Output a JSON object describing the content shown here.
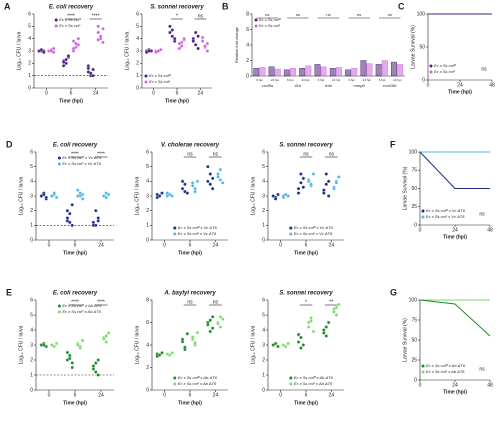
{
  "chart_data": [
    {
      "type": "dot",
      "panel": "A",
      "title": "E. coli recovery",
      "xlabel": "Time (hpi)",
      "ylabel": "Log₁₀ CFU / larva",
      "categories": [
        "0",
        "6",
        "24"
      ],
      "ylim": [
        0,
        6
      ],
      "yticks": [
        0,
        1,
        2,
        3,
        4,
        5,
        6
      ],
      "detection_limit": 1,
      "legend": "upper right",
      "significance": [
        null,
        "****",
        "****"
      ],
      "series": [
        {
          "name": "Ec x Ss colᴿ",
          "color": "#4b1f7a",
          "values": [
            [
              3,
              3,
              3,
              3,
              3.1,
              2.9
            ],
            [
              2.2,
              2,
              2.5,
              1.8,
              2.3,
              2.6,
              2.1
            ],
            [
              1.3,
              1,
              1.5,
              1.8,
              1.2,
              1,
              1.6
            ]
          ]
        },
        {
          "name": "Ec x Ss colˢ",
          "color": "#cc66dd",
          "values": [
            [
              3,
              3.1,
              2.9,
              3,
              3,
              3.2
            ],
            [
              3.8,
              3.3,
              3.5,
              3,
              3.6,
              4,
              3.2
            ],
            [
              4.5,
              4,
              3.7,
              5,
              4.2,
              4.8,
              3.9
            ]
          ]
        }
      ]
    },
    {
      "type": "dot",
      "title": "S. sonnei recovery",
      "xlabel": "Time (hpi)",
      "ylabel": "Log₁₀ CFU / larva",
      "categories": [
        "0",
        "6",
        "24"
      ],
      "ylim": [
        0,
        6
      ],
      "yticks": [
        0,
        1,
        2,
        3,
        4,
        5,
        6
      ],
      "legend": "lower left",
      "significance": [
        null,
        "*",
        "ns"
      ],
      "series": [
        {
          "name": "Ec x Ss colᴿ",
          "color": "#4b1f7a",
          "values": [
            [
              3,
              3.1,
              3,
              2.9,
              3
            ],
            [
              4.5,
              4.2,
              3.8,
              5,
              4.7,
              4
            ],
            [
              4,
              3.5,
              4.2,
              3.8,
              4.5,
              3.2
            ]
          ]
        },
        {
          "name": "Ec x Ss colˢ",
          "color": "#cc66dd",
          "values": [
            [
              3,
              3,
              3.1,
              2.9,
              3
            ],
            [
              3.6,
              3.4,
              3.9,
              3.2,
              3.7,
              4
            ],
            [
              3.8,
              3.3,
              3.6,
              4.1,
              3.4,
              3
            ]
          ]
        }
      ]
    },
    {
      "type": "bar",
      "panel": "B",
      "ylabel": "Relative fold change",
      "categories": [
        "6 hpi",
        "24 hpi",
        "6 hpi",
        "24 hpi",
        "6 hpi",
        "24 hpi",
        "6 hpi",
        "24 hpi",
        "6 hpi",
        "24 hpi"
      ],
      "groups": [
        "cxcl8a",
        "il1b",
        "tnfa",
        "mmp9",
        "cxcl18b"
      ],
      "ylim": [
        0,
        8
      ],
      "yticks": [
        0,
        2,
        4,
        6,
        8
      ],
      "legend": "upper left",
      "significance": [
        "ns",
        "ns",
        "ns",
        "ns",
        "ns"
      ],
      "series": [
        {
          "name": "Ec x Ss colᴿ",
          "color": "#4b1f7a",
          "values": [
            1,
            1.2,
            0.8,
            1,
            1.5,
            1,
            0.8,
            2,
            1.5,
            1.8
          ]
        },
        {
          "name": "Ec x Ss colˢ",
          "color": "#cc66dd",
          "values": [
            1.1,
            0.9,
            1,
            1.3,
            1.2,
            1.1,
            1,
            1.6,
            2,
            1.5
          ]
        }
      ]
    },
    {
      "type": "survival",
      "panel": "C",
      "xlabel": "Time (hpi)",
      "ylabel": "Larvae Survival (%)",
      "x": [
        0,
        48
      ],
      "xlim": [
        0,
        48
      ],
      "xticks": [
        0,
        24,
        48
      ],
      "ylim": [
        0,
        100
      ],
      "yticks": [
        0,
        50,
        100
      ],
      "note": "ns",
      "series": [
        {
          "name": "Ec x Ss colᴿ",
          "color": "#4b1f7a",
          "values": [
            100,
            100
          ]
        },
        {
          "name": "Ec x Ss colˢ",
          "color": "#cc66dd",
          "values": [
            100,
            100
          ]
        }
      ]
    },
    {
      "type": "dot",
      "panel": "D",
      "title": "E. coli recovery",
      "xlabel": "Time (hpi)",
      "ylabel": "Log₁₀ CFU / larva",
      "categories": [
        "0",
        "6",
        "24"
      ],
      "ylim": [
        0,
        6
      ],
      "yticks": [
        0,
        1,
        2,
        3,
        4,
        5,
        6
      ],
      "detection_limit": 1,
      "legend": "upper right",
      "significance": [
        null,
        "****",
        "****"
      ],
      "series": [
        {
          "name": "Ec x Ss colᴿ x Vc ΔT6",
          "color": "#1a2f8a",
          "values": [
            [
              3,
              3.2,
              2.8,
              3,
              3.1,
              2.9
            ],
            [
              1.5,
              1.2,
              1,
              2,
              1.8,
              2.4,
              1.3
            ],
            [
              1.2,
              1,
              1.5,
              1,
              2,
              1.3
            ]
          ]
        },
        {
          "name": "Ec x Ss colˢ x Vc ΔT6",
          "color": "#4fb8e8",
          "values": [
            [
              3,
              3.1,
              2.9,
              3,
              3.2
            ],
            [
              3,
              3.2,
              2.8,
              3.4,
              3,
              3.1
            ],
            [
              3,
              2.9,
              3.1,
              3,
              3.2
            ]
          ]
        }
      ]
    },
    {
      "type": "dot",
      "title": "V. cholerae recovery",
      "xlabel": "Time (hpi)",
      "ylabel": "Log₁₀ CFU / larva",
      "categories": [
        "0",
        "6",
        "24"
      ],
      "ylim": [
        0,
        6
      ],
      "yticks": [
        0,
        1,
        2,
        3,
        4,
        5,
        6
      ],
      "legend": "lower right",
      "significance": [
        null,
        "ns",
        "ns"
      ],
      "series": [
        {
          "name": "Ec x Ss colᴿ x Vc ΔT6",
          "color": "#1a2f8a",
          "values": [
            [
              3.1,
              3,
              3.2,
              2.9,
              3
            ],
            [
              3.5,
              3.8,
              3.2,
              4,
              3.3
            ],
            [
              4,
              4.5,
              3.5,
              5,
              3.8,
              4.2
            ]
          ]
        },
        {
          "name": "Ec x Ss colˢ x Vc ΔT6",
          "color": "#4fb8e8",
          "values": [
            [
              3,
              3.1,
              3,
              3.2
            ],
            [
              3.7,
              3.5,
              4,
              3.9,
              3.3
            ],
            [
              4.3,
              4.8,
              3.9,
              4.5,
              4.1
            ]
          ]
        }
      ]
    },
    {
      "type": "dot",
      "title": "S. sonnei recovery",
      "xlabel": "Time (hpi)",
      "ylabel": "Log₁₀ CFU / larva",
      "categories": [
        "0",
        "6",
        "24"
      ],
      "ylim": [
        0,
        6
      ],
      "yticks": [
        0,
        1,
        2,
        3,
        4,
        5,
        6
      ],
      "legend": "lower right",
      "significance": [
        null,
        "ns",
        "ns"
      ],
      "series": [
        {
          "name": "Ec x Ss colᴿ x Vc ΔT6",
          "color": "#1a2f8a",
          "values": [
            [
              3,
              2.9,
              3.1,
              3,
              2.8
            ],
            [
              3.5,
              3.9,
              4.2,
              3.2,
              4.5,
              3.6
            ],
            [
              3.4,
              3.8,
              4,
              3.2,
              4.5,
              3
            ]
          ]
        },
        {
          "name": "Ec x Ss colˢ x Vc ΔT6",
          "color": "#4fb8e8",
          "values": [
            [
              3,
              3.1,
              3,
              2.9
            ],
            [
              4.1,
              3.7,
              4.5,
              4,
              3.8
            ],
            [
              3.6,
              4,
              4.3,
              3.5,
              3.9
            ]
          ]
        }
      ]
    },
    {
      "type": "survival",
      "panel": "F",
      "xlabel": "Time (hpi)",
      "ylabel": "Larvae Survival (%)",
      "x": [
        0,
        24,
        48
      ],
      "xlim": [
        0,
        48
      ],
      "xticks": [
        0,
        24,
        48
      ],
      "ylim": [
        0,
        100
      ],
      "yticks": [
        0,
        25,
        50,
        75,
        100
      ],
      "note": "ns",
      "series": [
        {
          "name": "Ec x Ss colᴿ x Vc ΔT6",
          "color": "#1a2f8a",
          "values": [
            100,
            50,
            50
          ]
        },
        {
          "name": "Ec x Ss colˢ x Vc ΔT6",
          "color": "#4fb8e8",
          "values": [
            100,
            100,
            100
          ]
        }
      ]
    },
    {
      "type": "dot",
      "panel": "E",
      "title": "E. coli recovery",
      "xlabel": "Time (hpi)",
      "ylabel": "Log₁₀ CFU / larva",
      "categories": [
        "0",
        "6",
        "24"
      ],
      "ylim": [
        0,
        6
      ],
      "yticks": [
        0,
        1,
        2,
        3,
        4,
        5,
        6
      ],
      "detection_limit": 1,
      "legend": "upper right",
      "significance": [
        null,
        "****",
        "****"
      ],
      "series": [
        {
          "name": "Ec x Ss colᴿ x Ab ΔT6",
          "color": "#1f8a2a",
          "values": [
            [
              3,
              3.1,
              2.9,
              3,
              3
            ],
            [
              2,
              2.3,
              1.8,
              2.5,
              2.1,
              1.5
            ],
            [
              1.6,
              1.2,
              2,
              1.4,
              1.8,
              1
            ]
          ]
        },
        {
          "name": "Ec x Ss colˢ x Ab ΔT6",
          "color": "#7ddc6e",
          "values": [
            [
              3,
              2.9,
              3.1,
              3
            ],
            [
              3.1,
              2.8,
              3.3,
              3,
              2.9
            ],
            [
              3.5,
              3.2,
              3.8,
              3.4,
              3.6
            ]
          ]
        }
      ]
    },
    {
      "type": "dot",
      "title": "A. baylyi recovery",
      "xlabel": "Time (hpi)",
      "ylabel": "Log₁₀ CFU / larva",
      "categories": [
        "0",
        "6",
        "24"
      ],
      "ylim": [
        0,
        8
      ],
      "yticks": [
        0,
        2,
        4,
        6,
        8
      ],
      "legend": "lower right",
      "significance": [
        null,
        "ns",
        "ns"
      ],
      "series": [
        {
          "name": "Ec x Ss colᴿ x Ab ΔT6",
          "color": "#1f8a2a",
          "values": [
            [
              3.2,
              3.1,
              3.3,
              3
            ],
            [
              4.3,
              3.8,
              5,
              4.5,
              3.6
            ],
            [
              5.8,
              6.2,
              5.5,
              6,
              5.2,
              6.5
            ]
          ]
        },
        {
          "name": "Ec x Ss colˢ x Ab ΔT6",
          "color": "#7ddc6e",
          "values": [
            [
              3.2,
              3.1,
              3.3
            ],
            [
              4.5,
              4,
              5.1,
              4.7,
              4.2
            ],
            [
              6,
              5.6,
              6.3,
              5.9,
              6.5
            ]
          ]
        }
      ]
    },
    {
      "type": "dot",
      "title": "S. sonnei recovery",
      "xlabel": "Time (hpi)",
      "ylabel": "Log₁₀ CFU / larva",
      "categories": [
        "0",
        "6",
        "24"
      ],
      "ylim": [
        0,
        6
      ],
      "yticks": [
        0,
        1,
        2,
        3,
        4,
        5,
        6
      ],
      "legend": "lower right",
      "significance": [
        null,
        "*",
        "**"
      ],
      "series": [
        {
          "name": "Ec x Ss colᴿ x Ab ΔT6",
          "color": "#1f8a2a",
          "values": [
            [
              3,
              3.1,
              2.9,
              3
            ],
            [
              3.2,
              3.5,
              3,
              3.7,
              2.8
            ],
            [
              4,
              3.6,
              4.5,
              3.8,
              4.2
            ]
          ]
        },
        {
          "name": "Ec x Ss colˢ x Ab ΔT6",
          "color": "#7ddc6e",
          "values": [
            [
              3,
              2.9,
              3.1
            ],
            [
              4.2,
              4.6,
              3.9,
              4.5,
              4.8
            ],
            [
              5.4,
              5,
              5.7,
              5.2,
              5.5
            ]
          ]
        }
      ]
    },
    {
      "type": "survival",
      "panel": "G",
      "xlabel": "Time (hpi)",
      "ylabel": "Larvae Survival (%)",
      "x": [
        0,
        24,
        48
      ],
      "xlim": [
        0,
        48
      ],
      "xticks": [
        0,
        24,
        48
      ],
      "ylim": [
        0,
        100
      ],
      "yticks": [
        0,
        25,
        50,
        75,
        100
      ],
      "note": "ns",
      "series": [
        {
          "name": "Ec x Ss colᴿ x Ab ΔT6",
          "color": "#1f8a2a",
          "values": [
            100,
            95,
            55
          ]
        },
        {
          "name": "Ec x Ss colˢ x Ab ΔT6",
          "color": "#7ddc6e",
          "values": [
            100,
            100,
            100
          ]
        }
      ]
    }
  ]
}
